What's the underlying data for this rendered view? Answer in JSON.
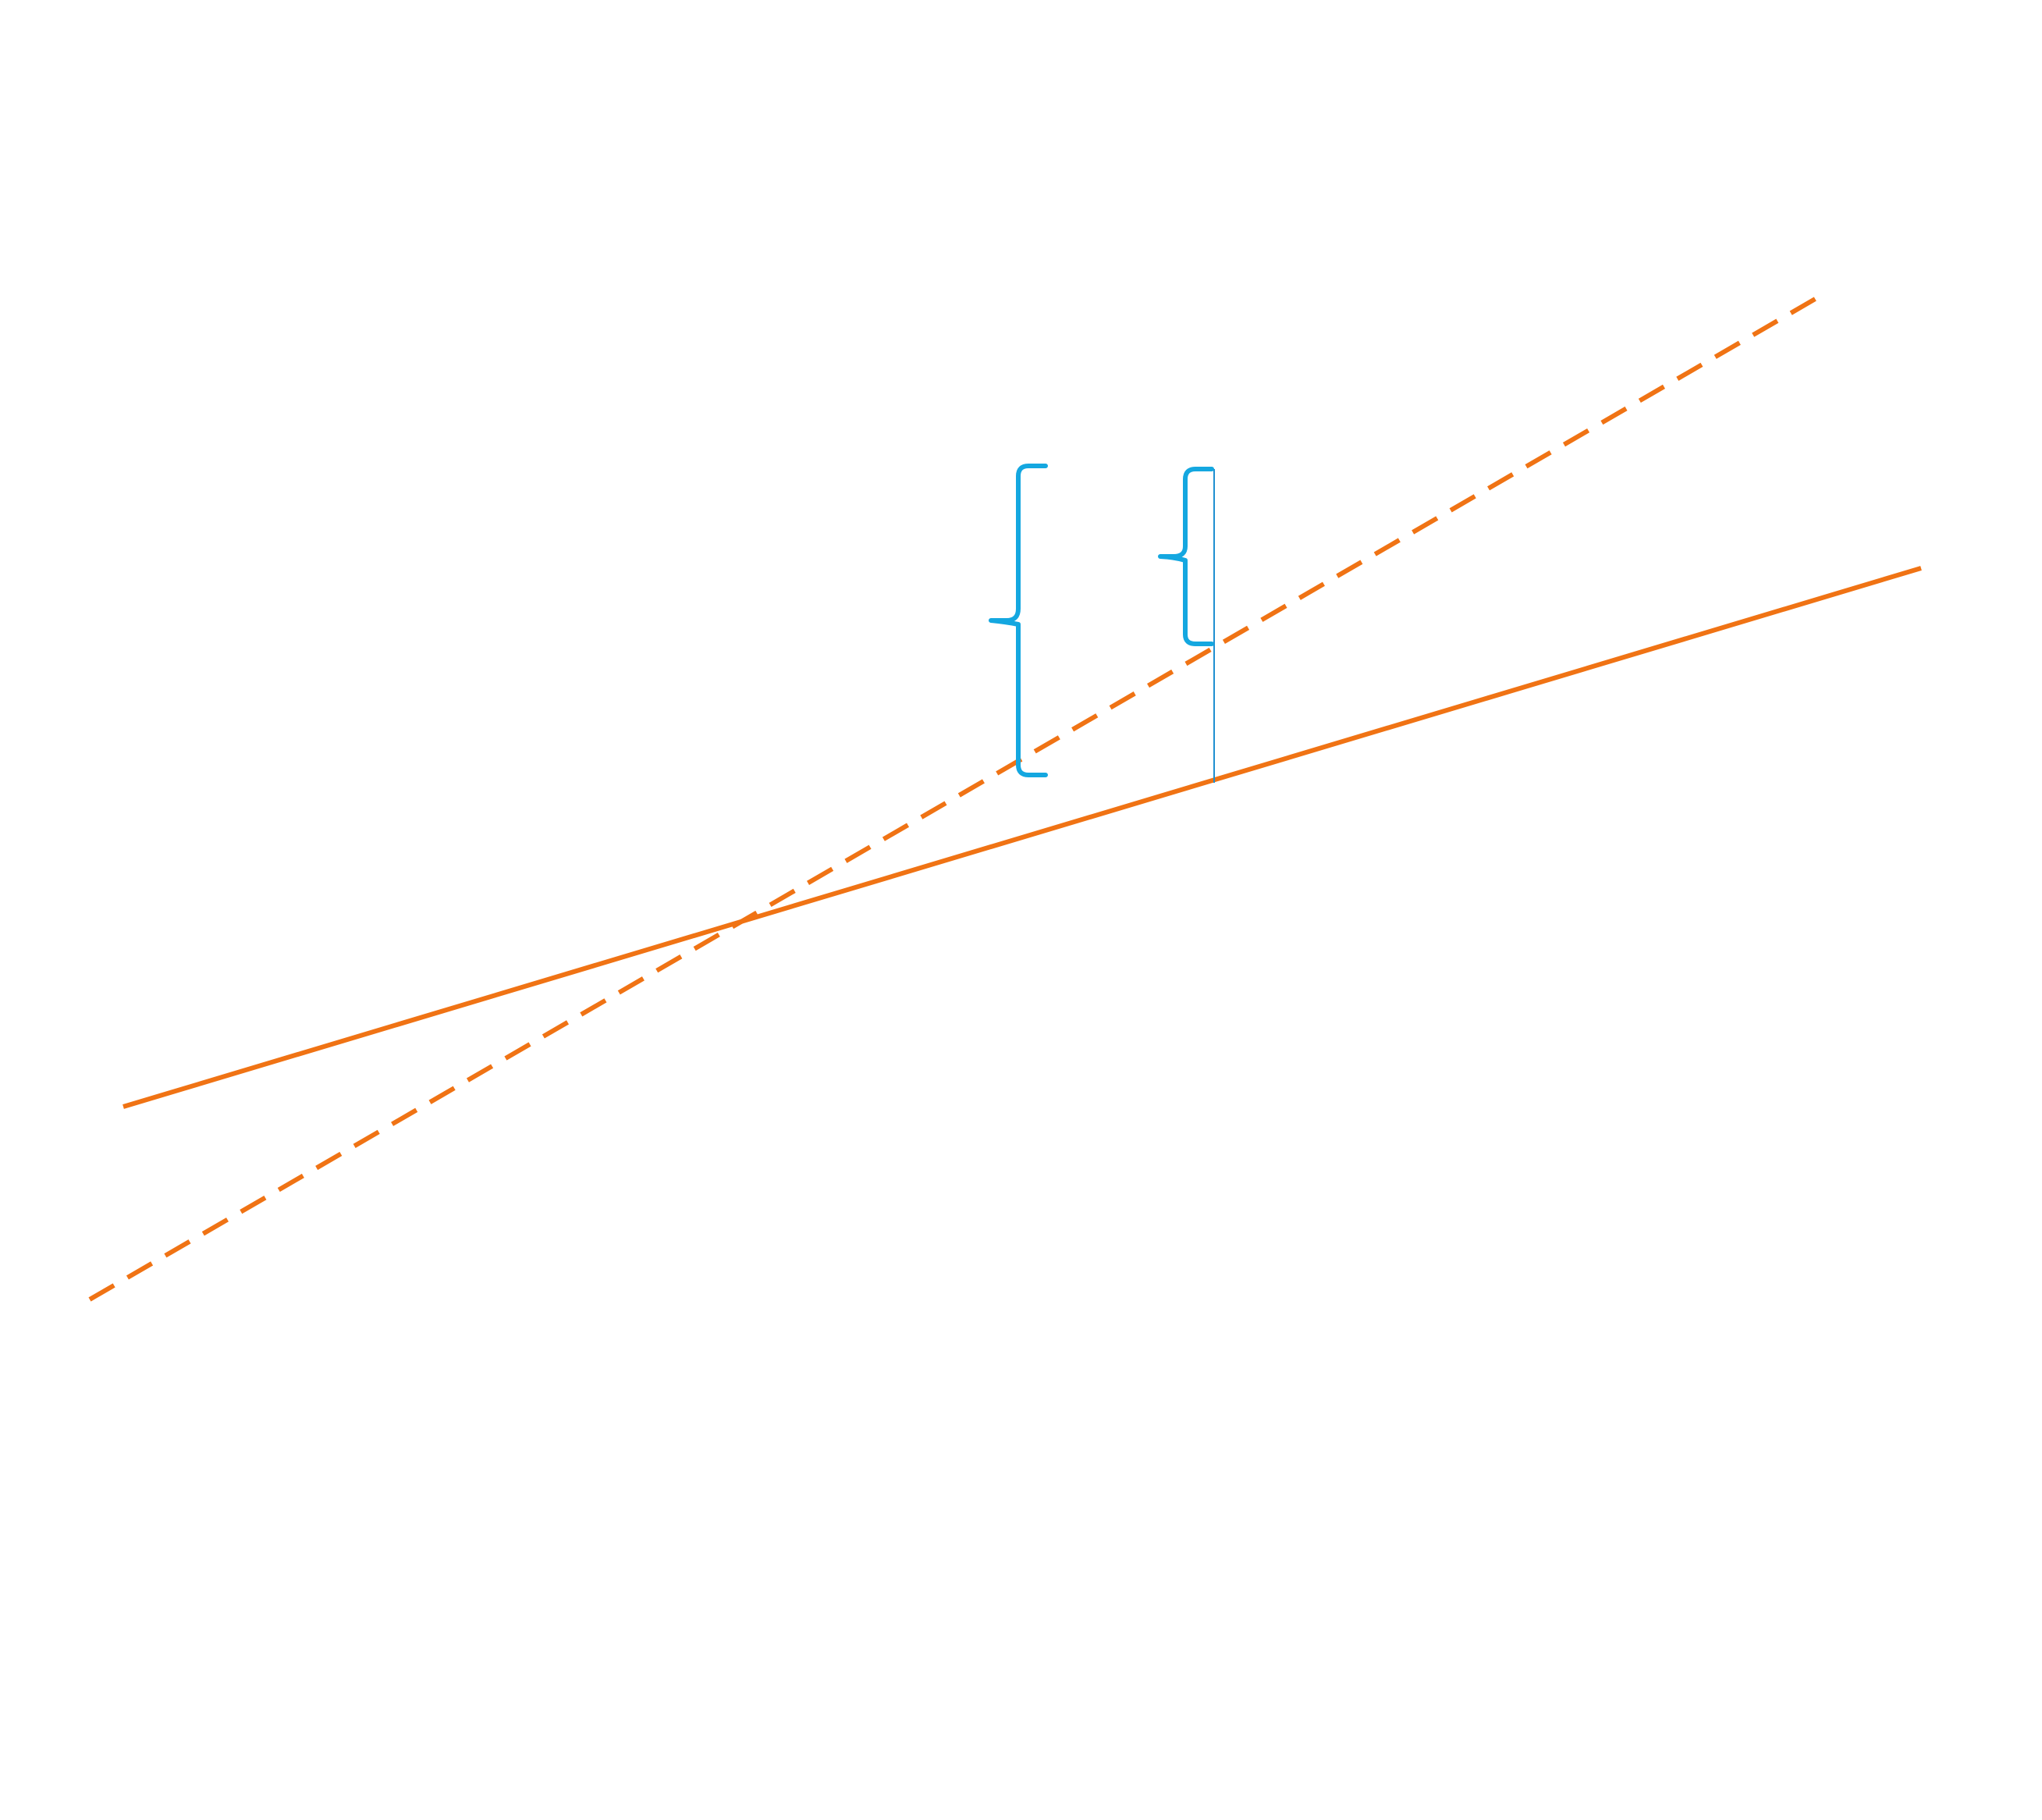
{
  "colors": {
    "background": "#ffffff",
    "line": "#f07314",
    "bracket": "#14a7e0",
    "guide": "#1f8fd0"
  },
  "elements": {
    "solid_line": {
      "style": "solid",
      "color_key": "line"
    },
    "dashed_line": {
      "style": "dashed",
      "color_key": "line"
    },
    "large_brace": {
      "shape": "curly-brace",
      "opens": "right",
      "color_key": "bracket"
    },
    "small_brace": {
      "shape": "curly-brace",
      "opens": "right",
      "color_key": "bracket"
    },
    "vertical_guide": {
      "style": "thin",
      "color_key": "guide"
    }
  }
}
